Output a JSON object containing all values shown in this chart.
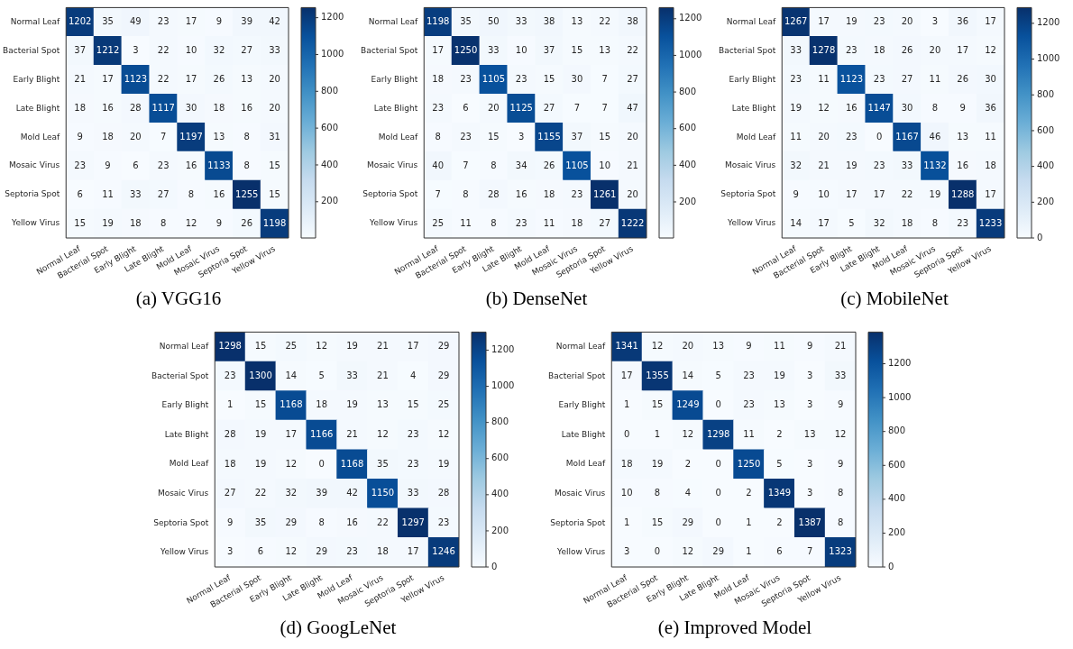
{
  "chart_data": [
    {
      "type": "heatmap",
      "title": "(a) VGG16",
      "categories": [
        "Normal Leaf",
        "Bacterial Spot",
        "Early Blight",
        "Late Blight",
        "Mold Leaf",
        "Mosaic Virus",
        "Septoria Spot",
        "Yellow Virus"
      ],
      "y_categories": [
        "Normal Leaf",
        "Bacterial Spot",
        "Early Blight",
        "Late Blight",
        "Mold Leaf",
        "Mosaic Virus",
        "Septoria Spot",
        "Yellow Virus"
      ],
      "cells": [
        [
          1202,
          35,
          49,
          23,
          17,
          9,
          39,
          42
        ],
        [
          37,
          1212,
          3,
          22,
          10,
          32,
          27,
          33
        ],
        [
          21,
          17,
          1123,
          22,
          17,
          26,
          13,
          20
        ],
        [
          18,
          16,
          28,
          1117,
          30,
          18,
          16,
          20
        ],
        [
          9,
          18,
          20,
          7,
          1197,
          13,
          8,
          31
        ],
        [
          23,
          9,
          6,
          23,
          16,
          1133,
          8,
          15
        ],
        [
          6,
          11,
          33,
          27,
          8,
          16,
          1255,
          15
        ],
        [
          15,
          19,
          18,
          8,
          12,
          9,
          26,
          1198
        ]
      ],
      "clim": [
        3,
        1255
      ],
      "cticks": [
        200,
        400,
        600,
        800,
        1000,
        1200
      ],
      "data_labels": true
    },
    {
      "type": "heatmap",
      "title": "(b) DenseNet",
      "categories": [
        "Normal Leaf",
        "Bacterial Spot",
        "Early Blight",
        "Late Blight",
        "Mold Leaf",
        "Mosaic Virus",
        "Septoria Spot",
        "Yellow Virus"
      ],
      "y_categories": [
        "Normal Leaf",
        "Bacterial Spot",
        "Early Blight",
        "Late Blight",
        "Mold Leaf",
        "Mosaic Virus",
        "Septoria Spot",
        "Yellow Virus"
      ],
      "cells": [
        [
          1198,
          35,
          50,
          33,
          38,
          13,
          22,
          38
        ],
        [
          17,
          1250,
          33,
          10,
          37,
          15,
          13,
          22
        ],
        [
          18,
          23,
          1105,
          23,
          15,
          30,
          7,
          27
        ],
        [
          23,
          6,
          20,
          1125,
          27,
          7,
          7,
          47
        ],
        [
          8,
          23,
          15,
          3,
          1155,
          37,
          15,
          20
        ],
        [
          40,
          7,
          8,
          34,
          26,
          1105,
          10,
          21
        ],
        [
          7,
          8,
          28,
          16,
          18,
          23,
          1261,
          20
        ],
        [
          25,
          11,
          8,
          23,
          11,
          18,
          27,
          1222
        ]
      ],
      "clim": [
        3,
        1261
      ],
      "cticks": [
        200,
        400,
        600,
        800,
        1000,
        1200
      ],
      "data_labels": true
    },
    {
      "type": "heatmap",
      "title": "(c) MobileNet",
      "categories": [
        "Normal Leaf",
        "Bacterial Spot",
        "Early Blight",
        "Late Blight",
        "Mold Leaf",
        "Mosaic Virus",
        "Septoria Spot",
        "Yellow Virus"
      ],
      "y_categories": [
        "Normal Leaf",
        "Bacterial Spot",
        "Early Blight",
        "Late Blight",
        "Mold Leaf",
        "Mosaic Virus",
        "Septoria Spot",
        "Yellow Virus"
      ],
      "cells": [
        [
          1267,
          17,
          19,
          23,
          20,
          3,
          36,
          17
        ],
        [
          33,
          1278,
          23,
          18,
          26,
          20,
          17,
          12
        ],
        [
          23,
          11,
          1123,
          23,
          27,
          11,
          26,
          30
        ],
        [
          19,
          12,
          16,
          1147,
          30,
          8,
          9,
          36
        ],
        [
          11,
          20,
          23,
          0,
          1167,
          46,
          13,
          11
        ],
        [
          32,
          21,
          19,
          23,
          33,
          1132,
          16,
          18
        ],
        [
          9,
          10,
          17,
          17,
          22,
          19,
          1288,
          17
        ],
        [
          14,
          17,
          5,
          32,
          18,
          8,
          23,
          1233
        ]
      ],
      "clim": [
        0,
        1288
      ],
      "cticks": [
        0,
        200,
        400,
        600,
        800,
        1000,
        1200
      ],
      "data_labels": true
    },
    {
      "type": "heatmap",
      "title": "(d) GoogLeNet",
      "categories": [
        "Normal Leaf",
        "Bacterial Spot",
        "Early Blight",
        "Late Blight",
        "Mold Leaf",
        "Mosaic Virus",
        "Septoria Spot",
        "Yellow Virus"
      ],
      "y_categories": [
        "Normal Leaf",
        "Bacterial Spot",
        "Early Blight",
        "Late Blight",
        "Mold Leaf",
        "Mosaic Virus",
        "Septoria Spot",
        "Yellow Virus"
      ],
      "cells": [
        [
          1298,
          15,
          25,
          12,
          19,
          21,
          17,
          29
        ],
        [
          23,
          1300,
          14,
          5,
          33,
          21,
          4,
          29
        ],
        [
          1,
          15,
          1168,
          18,
          19,
          13,
          15,
          25
        ],
        [
          28,
          19,
          17,
          1166,
          21,
          12,
          23,
          12
        ],
        [
          18,
          19,
          12,
          0,
          1168,
          35,
          23,
          19
        ],
        [
          27,
          22,
          32,
          39,
          42,
          1150,
          33,
          28
        ],
        [
          9,
          35,
          29,
          8,
          16,
          22,
          1297,
          23
        ],
        [
          3,
          6,
          12,
          29,
          23,
          18,
          17,
          1246
        ]
      ],
      "clim": [
        0,
        1300
      ],
      "cticks": [
        0,
        200,
        400,
        600,
        800,
        1000,
        1200
      ],
      "data_labels": true
    },
    {
      "type": "heatmap",
      "title": "(e)  Improved Model",
      "categories": [
        "Normal Leaf",
        "Bacterial Spot",
        "Early Blight",
        "Late Blight",
        "Mold Leaf",
        "Mosaic Virus",
        "Septoria Spot",
        "Yellow Virus"
      ],
      "y_categories": [
        "Normal Leaf",
        "Bacterial Spot",
        "Early Blight",
        "Late Blight",
        "Mold Leaf",
        "Mosaic Virus",
        "Septoria Spot",
        "Yellow Virus"
      ],
      "cells": [
        [
          1341,
          12,
          20,
          13,
          9,
          11,
          9,
          21
        ],
        [
          17,
          1355,
          14,
          5,
          23,
          19,
          3,
          33
        ],
        [
          1,
          15,
          1249,
          0,
          23,
          13,
          3,
          9
        ],
        [
          0,
          1,
          12,
          1298,
          11,
          2,
          13,
          12
        ],
        [
          18,
          19,
          2,
          0,
          1250,
          5,
          3,
          9
        ],
        [
          10,
          8,
          4,
          0,
          2,
          1349,
          3,
          8
        ],
        [
          1,
          15,
          29,
          0,
          1,
          2,
          1387,
          8
        ],
        [
          3,
          0,
          12,
          29,
          1,
          6,
          7,
          1323
        ]
      ],
      "clim": [
        0,
        1387
      ],
      "cticks": [
        0,
        200,
        400,
        600,
        800,
        1000,
        1200
      ],
      "data_labels": true
    }
  ]
}
